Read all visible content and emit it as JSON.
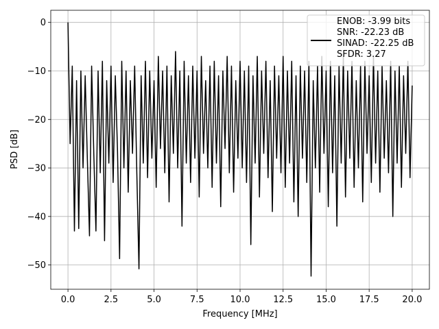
{
  "chart_data": {
    "type": "line",
    "xlabel": "Frequency [MHz]",
    "ylabel": "PSD [dB]",
    "xlim": [
      -1,
      21
    ],
    "ylim": [
      -55,
      2.5
    ],
    "xticks": [
      {
        "value": 0,
        "label": "0.0"
      },
      {
        "value": 2.5,
        "label": "2.5"
      },
      {
        "value": 5,
        "label": "5.0"
      },
      {
        "value": 7.5,
        "label": "7.5"
      },
      {
        "value": 10,
        "label": "10.0"
      },
      {
        "value": 12.5,
        "label": "12.5"
      },
      {
        "value": 15,
        "label": "15.0"
      },
      {
        "value": 17.5,
        "label": "17.5"
      },
      {
        "value": 20,
        "label": "20.0"
      }
    ],
    "yticks": [
      0,
      {
        "value": -10,
        "label": "−10"
      },
      {
        "value": -20,
        "label": "−20"
      },
      {
        "value": -30,
        "label": "−30"
      },
      {
        "value": -40,
        "label": "−40"
      },
      {
        "value": -50,
        "label": "−50"
      }
    ],
    "grid": true,
    "legend": "upper right",
    "x": [
      0,
      0.125,
      0.25,
      0.375,
      0.5,
      0.625,
      0.75,
      0.875,
      1,
      1.125,
      1.25,
      1.375,
      1.5,
      1.625,
      1.75,
      1.875,
      2,
      2.125,
      2.25,
      2.375,
      2.5,
      2.625,
      2.75,
      2.875,
      3,
      3.125,
      3.25,
      3.375,
      3.5,
      3.625,
      3.75,
      3.875,
      4,
      4.125,
      4.25,
      4.375,
      4.5,
      4.625,
      4.75,
      4.875,
      5,
      5.125,
      5.25,
      5.375,
      5.5,
      5.625,
      5.75,
      5.875,
      6,
      6.125,
      6.25,
      6.375,
      6.5,
      6.625,
      6.75,
      6.875,
      7,
      7.125,
      7.25,
      7.375,
      7.5,
      7.625,
      7.75,
      7.875,
      8,
      8.125,
      8.25,
      8.375,
      8.5,
      8.625,
      8.75,
      8.875,
      9,
      9.125,
      9.25,
      9.375,
      9.5,
      9.625,
      9.75,
      9.875,
      10,
      10.125,
      10.25,
      10.375,
      10.5,
      10.625,
      10.75,
      10.875,
      11,
      11.125,
      11.25,
      11.375,
      11.5,
      11.625,
      11.75,
      11.875,
      12,
      12.125,
      12.25,
      12.375,
      12.5,
      12.625,
      12.75,
      12.875,
      13,
      13.125,
      13.25,
      13.375,
      13.5,
      13.625,
      13.75,
      13.875,
      14,
      14.125,
      14.25,
      14.375,
      14.5,
      14.625,
      14.75,
      14.875,
      15,
      15.125,
      15.25,
      15.375,
      15.5,
      15.625,
      15.75,
      15.875,
      16,
      16.125,
      16.25,
      16.375,
      16.5,
      16.625,
      16.75,
      16.875,
      17,
      17.125,
      17.25,
      17.375,
      17.5,
      17.625,
      17.75,
      17.875,
      18,
      18.125,
      18.25,
      18.375,
      18.5,
      18.625,
      18.75,
      18.875,
      19,
      19.125,
      19.25,
      19.375,
      19.5,
      19.625,
      19.75,
      19.875,
      20
    ],
    "series": [
      {
        "name": "ENOB: -3.99 bits\nSNR: -22.23 dB\nSINAD: -22.25 dB\nSFDR: 3.27",
        "color": "#000000",
        "values": [
          0,
          -25,
          -9,
          -43,
          -12,
          -42.5,
          -10,
          -30,
          -11,
          -28,
          -44,
          -9,
          -27,
          -43,
          -10,
          -31,
          -8,
          -45,
          -12,
          -29,
          -9,
          -33,
          -11,
          -26,
          -48.7,
          -8,
          -30,
          -10,
          -35,
          -12,
          -27,
          -9,
          -31,
          -50.8,
          -11,
          -29,
          -8,
          -32,
          -10,
          -28,
          -12,
          -34,
          -7,
          -26,
          -10,
          -31,
          -9,
          -37,
          -11,
          -27,
          -6,
          -30,
          -10,
          -42,
          -8,
          -29,
          -11,
          -33,
          -9,
          -28,
          -10,
          -36,
          -7,
          -27,
          -12,
          -30,
          -9,
          -34,
          -8,
          -29,
          -11,
          -38,
          -10,
          -26,
          -7,
          -31,
          -9,
          -35,
          -12,
          -28,
          -8,
          -30,
          -10,
          -33,
          -9,
          -45.8,
          -11,
          -29,
          -7,
          -36,
          -10,
          -27,
          -8,
          -32,
          -12,
          -39,
          -9,
          -28,
          -11,
          -31,
          -7,
          -34,
          -10,
          -29,
          -8,
          -37,
          -11,
          -40,
          -9,
          -28,
          -10,
          -33,
          -8,
          -52.3,
          -12,
          -30,
          -9,
          -35,
          -7,
          -27,
          -10,
          -38,
          -8,
          -31,
          -11,
          -42,
          -9,
          -29,
          -7,
          -36,
          -10,
          -28,
          -8,
          -34,
          -12,
          -30,
          -9,
          -37,
          -8,
          -27,
          -11,
          -33,
          -7,
          -29,
          -10,
          -35,
          -9,
          -28,
          -12,
          -31,
          -8,
          -40,
          -10,
          -29,
          -9,
          -34,
          -11,
          -27,
          -8,
          -32,
          -13
        ]
      }
    ]
  }
}
